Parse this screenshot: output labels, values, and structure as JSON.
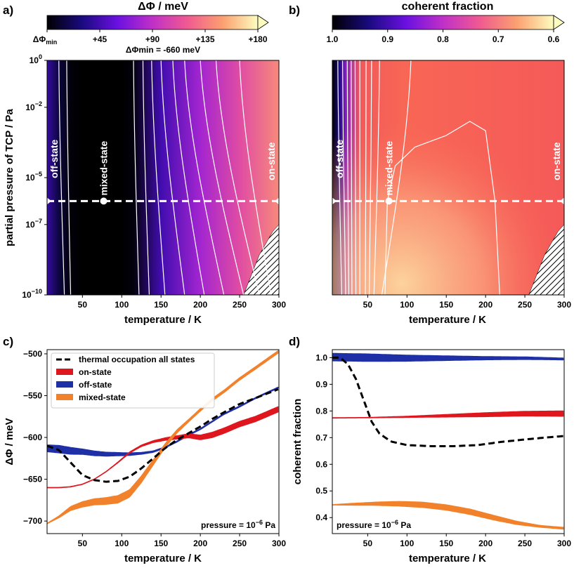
{
  "chart_data": [
    {
      "id": "a",
      "panel_label": "a)",
      "type": "heatmap",
      "colorbar": {
        "title": "ΔΦ / meV",
        "ticks": [
          "ΔΦmin",
          "+45",
          "+90",
          "+135",
          "+180"
        ],
        "tick_values": [
          0,
          45,
          90,
          135,
          180
        ],
        "range": [
          0,
          180
        ],
        "colors": [
          "#000000",
          "#1a0a80",
          "#6a10e0",
          "#c030c8",
          "#f05a90",
          "#fba070",
          "#fcfdbf"
        ],
        "note": "ΔΦmin = -660 meV"
      },
      "xlabel": "temperature / K",
      "ylabel": "partial pressure of TCP / Pa",
      "xlim": [
        5,
        300
      ],
      "ylim_log10": [
        -10,
        0
      ],
      "xticks": [
        50,
        100,
        150,
        200,
        250,
        300
      ],
      "yticks": [
        {
          "exp": "0",
          "value": 0
        },
        {
          "exp": "−2",
          "value": -2
        },
        {
          "exp": "−5",
          "value": -5
        },
        {
          "exp": "−7",
          "value": -7
        },
        {
          "exp": "−10",
          "value": -10
        }
      ],
      "dashed_line_pressure_log10": -6,
      "region_labels": [
        {
          "text": "off-state",
          "x": 14,
          "logp": -4.2
        },
        {
          "text": "mixed-state",
          "x": 77,
          "logp": -4.6
        },
        {
          "text": "on-state",
          "x": 290,
          "logp": -4.3
        }
      ],
      "marker_temperature": 77,
      "background_stops": [
        {
          "x": 5,
          "v": 40
        },
        {
          "x": 20,
          "v": 15
        },
        {
          "x": 35,
          "v": 2
        },
        {
          "x": 50,
          "v": 0
        },
        {
          "x": 100,
          "v": 0
        },
        {
          "x": 115,
          "v": 3
        },
        {
          "x": 150,
          "v": 45
        },
        {
          "x": 200,
          "v": 80
        },
        {
          "x": 250,
          "v": 110
        },
        {
          "x": 300,
          "v": 140
        }
      ],
      "contours": [
        {
          "top": 20,
          "bottom": 27
        },
        {
          "top": 30,
          "bottom": 35
        },
        {
          "top": 115,
          "bottom": 122
        },
        {
          "top": 127,
          "bottom": 135
        },
        {
          "top": 138,
          "bottom": 155
        },
        {
          "top": 150,
          "bottom": 180
        },
        {
          "top": 165,
          "bottom": 205
        },
        {
          "top": 180,
          "bottom": 230
        },
        {
          "top": 200,
          "bottom": 255
        },
        {
          "top": 220,
          "bottom": 275
        },
        {
          "top": 250,
          "bottom": 290
        }
      ]
    },
    {
      "id": "b",
      "panel_label": "b)",
      "type": "heatmap",
      "colorbar": {
        "title": "coherent fraction",
        "ticks": [
          "1.0",
          "0.9",
          "0.8",
          "0.7",
          "0.6"
        ],
        "tick_values": [
          1.0,
          0.9,
          0.8,
          0.7,
          0.6
        ],
        "range": [
          1.0,
          0.6
        ],
        "colors": [
          "#000000",
          "#1a0a80",
          "#6a10e0",
          "#c030c8",
          "#f05a90",
          "#fba070",
          "#fcfdbf"
        ]
      },
      "xlabel": "temperature / K",
      "xlim": [
        5,
        300
      ],
      "ylim_log10": [
        -10,
        0
      ],
      "xticks": [
        50,
        100,
        150,
        200,
        250,
        300
      ],
      "dashed_line_pressure_log10": -6,
      "region_labels": [
        {
          "text": "off-state",
          "x": 14,
          "logp": -4.2
        },
        {
          "text": "mixed-state",
          "x": 77,
          "logp": -4.6
        },
        {
          "text": "on-state",
          "x": 290,
          "logp": -4.3
        }
      ],
      "marker_temperature": 77,
      "contours": [
        {
          "top": 12,
          "bottom": 17
        },
        {
          "top": 18,
          "bottom": 22
        },
        {
          "top": 24,
          "bottom": 26
        },
        {
          "top": 29,
          "bottom": 30
        },
        {
          "top": 34,
          "bottom": 35
        },
        {
          "top": 40,
          "bottom": 40
        },
        {
          "top": 48,
          "bottom": 47
        },
        {
          "top": 55,
          "bottom": 52
        },
        {
          "top": 65,
          "bottom": 58
        },
        {
          "top": 105,
          "bottom": 68
        }
      ],
      "closed_contour": [
        [
          72,
          -10
        ],
        [
          75,
          -6
        ],
        [
          85,
          -4.5
        ],
        [
          110,
          -3.7
        ],
        [
          150,
          -3.2
        ],
        [
          180,
          -2.6
        ],
        [
          200,
          -3.0
        ],
        [
          212,
          -6
        ],
        [
          218,
          -10
        ]
      ]
    },
    {
      "id": "c",
      "panel_label": "c)",
      "type": "line",
      "xlabel": "temperature / K",
      "ylabel": "ΔΦ / meV",
      "xlim": [
        5,
        300
      ],
      "ylim": [
        -715,
        -495
      ],
      "xticks": [
        50,
        100,
        150,
        200,
        250,
        300
      ],
      "yticks": [
        -500,
        -550,
        -600,
        -650,
        -700
      ],
      "annotation": {
        "text": "pressure = 10",
        "exp": "−6",
        "unit": " Pa"
      },
      "legend": [
        "thermal occupation all states",
        "on-state",
        "off-state",
        "mixed-state"
      ],
      "series": [
        {
          "name": "thermal occupation all states",
          "color": "#000000",
          "style": "dashed",
          "x": [
            5,
            20,
            35,
            50,
            65,
            80,
            95,
            110,
            125,
            140,
            155,
            170,
            185,
            200,
            215,
            230,
            250,
            270,
            300
          ],
          "y": [
            -610,
            -615,
            -630,
            -645,
            -651,
            -653,
            -652,
            -647,
            -637,
            -625,
            -613,
            -603,
            -595,
            -587,
            -578,
            -570,
            -560,
            -553,
            -542
          ],
          "width": [
            3,
            3,
            3,
            3,
            3,
            3,
            3,
            3,
            3,
            3,
            3,
            3,
            3,
            3,
            3,
            3,
            3,
            3,
            3
          ]
        },
        {
          "name": "on-state",
          "color": "#e0161f",
          "style": "solid",
          "x": [
            5,
            20,
            35,
            50,
            65,
            80,
            95,
            110,
            125,
            140,
            155,
            170,
            185,
            200,
            215,
            230,
            250,
            270,
            300
          ],
          "y": [
            -660,
            -660,
            -659,
            -656,
            -650,
            -641,
            -630,
            -618,
            -610,
            -605,
            -602,
            -600,
            -598,
            -600,
            -597,
            -592,
            -584,
            -578,
            -566
          ],
          "width": [
            1,
            1,
            1,
            1,
            1,
            1,
            1.5,
            2,
            2.5,
            3,
            4,
            5,
            6,
            7,
            8,
            8,
            8,
            8,
            8
          ]
        },
        {
          "name": "off-state",
          "color": "#1f2fa6",
          "style": "solid",
          "x": [
            5,
            20,
            35,
            50,
            65,
            80,
            95,
            110,
            125,
            140,
            155,
            170,
            185,
            200,
            215,
            230,
            250,
            270,
            300
          ],
          "y": [
            -613,
            -614,
            -616,
            -617,
            -619,
            -620,
            -620,
            -620,
            -619,
            -617,
            -612,
            -605,
            -597,
            -590,
            -581,
            -572,
            -563,
            -553,
            -540
          ],
          "width": [
            10,
            11,
            10,
            8,
            7,
            6,
            5,
            4,
            3,
            2.5,
            2,
            2,
            2,
            2,
            2,
            2,
            2,
            2,
            2
          ]
        },
        {
          "name": "mixed-state",
          "color": "#f2812b",
          "style": "solid",
          "x": [
            5,
            20,
            35,
            50,
            65,
            80,
            95,
            110,
            125,
            140,
            155,
            170,
            185,
            200,
            215,
            230,
            250,
            270,
            300
          ],
          "y": [
            -703,
            -695,
            -685,
            -680,
            -677,
            -676,
            -674,
            -667,
            -650,
            -630,
            -610,
            -593,
            -580,
            -567,
            -555,
            -545,
            -530,
            -517,
            -497
          ],
          "width": [
            1,
            3,
            6,
            8,
            9,
            10,
            11,
            11,
            10,
            8,
            6,
            5,
            4,
            4,
            4,
            4,
            4,
            4,
            4
          ]
        }
      ]
    },
    {
      "id": "d",
      "panel_label": "d)",
      "type": "line",
      "xlabel": "temperature / K",
      "ylabel": "coherent fraction",
      "xlim": [
        5,
        300
      ],
      "ylim": [
        0.34,
        1.03
      ],
      "xticks": [
        50,
        100,
        150,
        200,
        250,
        300
      ],
      "yticks": [
        1.0,
        0.9,
        0.8,
        0.7,
        0.6,
        0.5,
        0.4
      ],
      "annotation": {
        "text": "pressure = 10",
        "exp": "−6",
        "unit": " Pa"
      },
      "series": [
        {
          "name": "thermal occupation all states",
          "color": "#000000",
          "style": "dashed",
          "x": [
            5,
            15,
            25,
            35,
            45,
            55,
            65,
            80,
            100,
            130,
            160,
            190,
            220,
            250,
            275,
            300
          ],
          "y": [
            1.0,
            1.0,
            0.975,
            0.92,
            0.84,
            0.76,
            0.715,
            0.685,
            0.672,
            0.668,
            0.668,
            0.672,
            0.684,
            0.693,
            0.7,
            0.706
          ],
          "width": [
            3,
            3,
            3,
            3,
            3,
            3,
            3,
            3,
            3,
            3,
            3,
            3,
            3,
            3,
            3,
            3
          ]
        },
        {
          "name": "on-state",
          "color": "#e0161f",
          "style": "solid",
          "x": [
            5,
            50,
            100,
            150,
            200,
            250,
            300
          ],
          "y": [
            0.774,
            0.775,
            0.778,
            0.782,
            0.786,
            0.79,
            0.79
          ],
          "width": [
            1,
            1,
            2,
            4,
            6,
            7,
            8
          ]
        },
        {
          "name": "off-state",
          "color": "#1f2fa6",
          "style": "solid",
          "x": [
            5,
            50,
            100,
            150,
            200,
            250,
            300
          ],
          "y": [
            1.002,
            1.0,
            0.998,
            0.998,
            0.998,
            0.998,
            0.995
          ],
          "width": [
            11,
            11,
            9,
            7,
            5,
            4,
            3
          ]
        },
        {
          "name": "mixed-state",
          "color": "#f2812b",
          "style": "solid",
          "x": [
            5,
            30,
            60,
            90,
            120,
            150,
            180,
            210,
            240,
            270,
            300
          ],
          "y": [
            0.448,
            0.45,
            0.452,
            0.452,
            0.448,
            0.438,
            0.422,
            0.4,
            0.38,
            0.367,
            0.36
          ],
          "width": [
            1,
            3,
            5,
            7,
            8,
            8,
            8,
            7,
            5,
            3,
            3
          ]
        }
      ]
    }
  ]
}
